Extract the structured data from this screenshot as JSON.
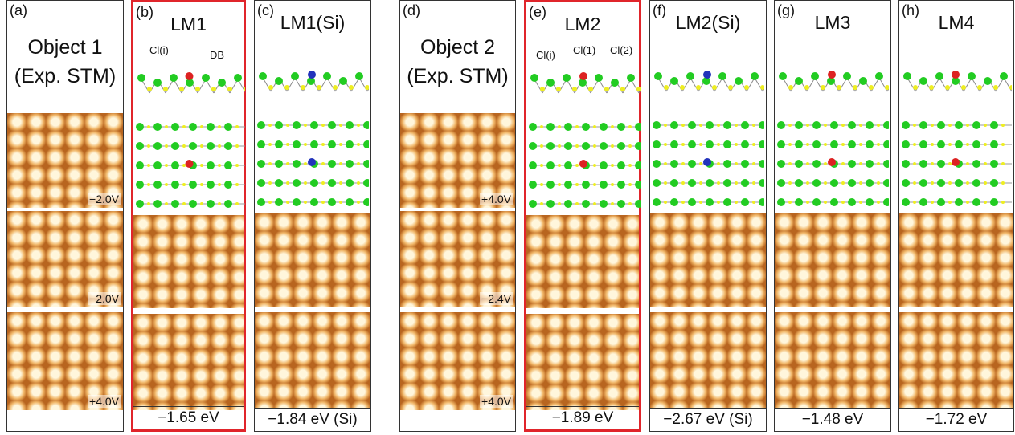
{
  "panels": [
    {
      "label": "(a)",
      "title": [
        "Object 1",
        "(Exp. STM)"
      ],
      "images": [
        "−2.0V",
        "−2.0V",
        "+4.0V"
      ]
    },
    {
      "label": "(b)",
      "title": [
        "LM1"
      ],
      "annotations": [
        "Cl(i)",
        "DB"
      ],
      "energy": "−1.65 eV"
    },
    {
      "label": "(c)",
      "title": [
        "LM1(Si)"
      ],
      "energy": "−1.84 eV (Si)"
    },
    {
      "label": "(d)",
      "title": [
        "Object 2",
        "(Exp. STM)"
      ],
      "images": [
        "+4.0V",
        "−2.4V",
        "+4.0V"
      ]
    },
    {
      "label": "(e)",
      "title": [
        "LM2"
      ],
      "annotations": [
        "Cl(i)",
        "Cl(1)",
        "Cl(2)"
      ],
      "energy": "−1.89 eV"
    },
    {
      "label": "(f)",
      "title": [
        "LM2(Si)"
      ],
      "energy": "−2.67 eV (Si)"
    },
    {
      "label": "(g)",
      "title": [
        "LM3"
      ],
      "energy": "−1.48 eV"
    },
    {
      "label": "(h)",
      "title": [
        "LM4"
      ],
      "energy": "−1.72 eV"
    }
  ]
}
